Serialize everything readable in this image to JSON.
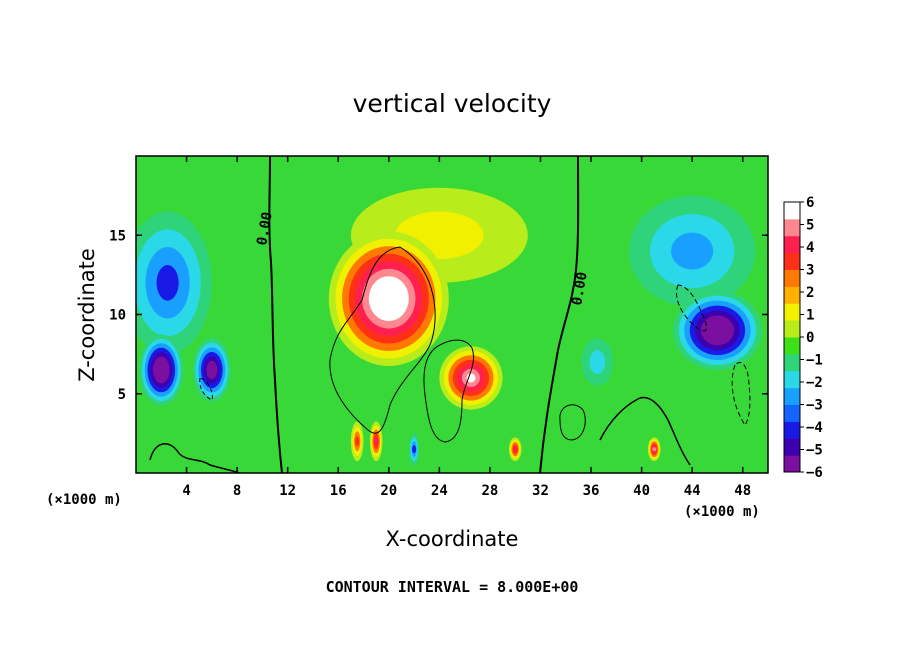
{
  "chart_data": {
    "type": "heatmap",
    "title": "vertical velocity",
    "xlabel": "X-coordinate",
    "ylabel": "Z-coordinate",
    "x_unit_note": "(×1000 m)",
    "x_unit_note_right": "(×1000 m)",
    "footer": "CONTOUR INTERVAL = 8.000E+00",
    "xlim": [
      0,
      50
    ],
    "ylim": [
      0,
      20
    ],
    "x_ticks": [
      "4",
      "8",
      "12",
      "16",
      "20",
      "24",
      "28",
      "32",
      "36",
      "40",
      "44",
      "48"
    ],
    "y_ticks": [
      "5",
      "10",
      "15"
    ],
    "colorbar": {
      "range": [
        -6,
        6
      ],
      "labels": [
        "6",
        "5",
        "4",
        "3",
        "2",
        "1",
        "0",
        "−1",
        "−2",
        "−3",
        "−4",
        "−5",
        "−6"
      ],
      "colors": [
        "#7a0fa0",
        "#3d00b0",
        "#1a1ae6",
        "#1464ff",
        "#19a0ff",
        "#2ad8e8",
        "#2fd47a",
        "#3ee01a",
        "#b8ec1a",
        "#f0f000",
        "#ffb000",
        "#ff7800",
        "#ff3018",
        "#ff2050",
        "#ff8890",
        "#ffffff"
      ]
    },
    "contour_labels": [
      "0.00",
      "0.00"
    ],
    "features": [
      {
        "x": 20,
        "z": 11,
        "w": 9.5,
        "h": 8.5,
        "value": 9
      },
      {
        "x": 26.5,
        "z": 6,
        "w": 5,
        "h": 4,
        "value": 7
      },
      {
        "x": 46,
        "z": 9,
        "w": 7,
        "h": 5,
        "value": -8
      },
      {
        "x": 2,
        "z": 6.5,
        "w": 3.5,
        "h": 4.5,
        "value": -8
      },
      {
        "x": 6,
        "z": 6.5,
        "w": 3,
        "h": 4,
        "value": -7
      },
      {
        "x": 2.5,
        "z": 12,
        "w": 7,
        "h": 9,
        "value": -4
      },
      {
        "x": 44,
        "z": 14,
        "w": 10,
        "h": 7,
        "value": -3
      },
      {
        "x": 36.5,
        "z": 7,
        "w": 2.5,
        "h": 3,
        "value": -2
      },
      {
        "x": 17.5,
        "z": 2,
        "w": 1,
        "h": 2.5,
        "value": 4
      },
      {
        "x": 19,
        "z": 2,
        "w": 1,
        "h": 2.5,
        "value": 5
      },
      {
        "x": 22,
        "z": 1.5,
        "w": 0.8,
        "h": 2,
        "value": -4
      },
      {
        "x": 30,
        "z": 1.5,
        "w": 1,
        "h": 1.5,
        "value": 5
      },
      {
        "x": 41,
        "z": 1.5,
        "w": 1,
        "h": 1.5,
        "value": 6
      },
      {
        "x": 24,
        "z": 15,
        "w": 14,
        "h": 6,
        "value": 2
      }
    ]
  }
}
